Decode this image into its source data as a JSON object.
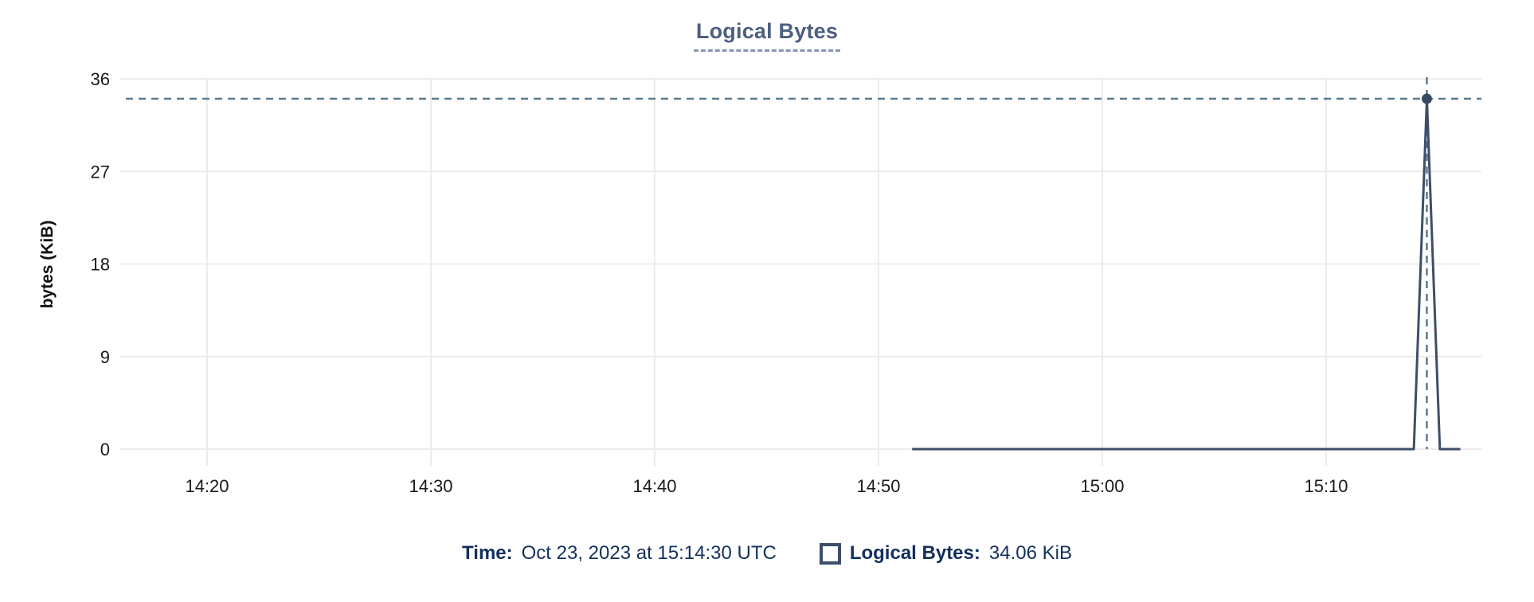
{
  "chart_data": {
    "type": "line",
    "title": "Logical Bytes",
    "xlabel": "",
    "ylabel": "bytes (KiB)",
    "x_ticks": [
      "14:20",
      "14:30",
      "14:40",
      "14:50",
      "15:00",
      "15:10"
    ],
    "y_ticks": [
      0,
      9,
      18,
      27,
      36
    ],
    "ylim": [
      0,
      36
    ],
    "grid": true,
    "legend_position": "bottom",
    "series": [
      {
        "name": "Logical Bytes",
        "points": [
          {
            "x": "14:51:30",
            "y": 0
          },
          {
            "x": "15:13:55",
            "y": 0
          },
          {
            "x": "15:14:30",
            "y": 34.06
          },
          {
            "x": "15:15:05",
            "y": 0
          },
          {
            "x": "15:16:00",
            "y": 0
          }
        ]
      }
    ],
    "selected_point": {
      "x": "15:14:30",
      "y": 34.06,
      "series": "Logical Bytes"
    },
    "crosshair": true,
    "colors": {
      "line": "#3e4e68",
      "marker": "#3a4a63",
      "crosshair": "#5b7a8f",
      "grid": "#ececec",
      "tick_text": "#1a1a1a",
      "title_text": "#4c5f7f",
      "tooltip_text": "#13305c"
    }
  },
  "tooltip": {
    "time_label": "Time:",
    "time_value": "Oct 23, 2023 at 15:14:30 UTC",
    "series_label": "Logical Bytes:",
    "series_value": "34.06 KiB"
  }
}
